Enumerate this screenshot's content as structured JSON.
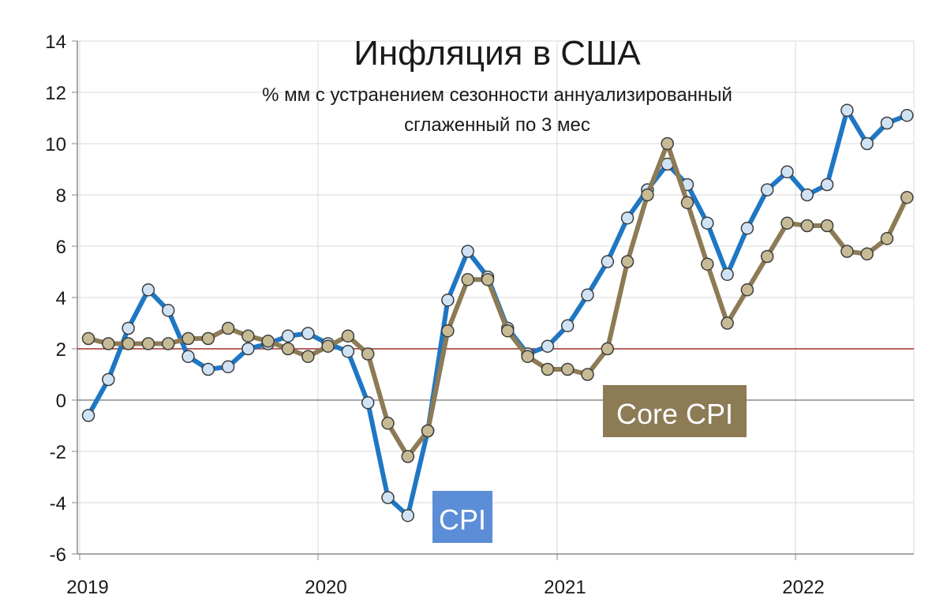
{
  "chart_data": {
    "type": "line",
    "title": "Инфляция в США",
    "subtitle_lines": [
      "% мм с устранением сезонности аннуализированный",
      "сглаженный по 3 мес"
    ],
    "xlabel": "",
    "ylabel": "",
    "ylim": [
      -6,
      14
    ],
    "y_ticks": [
      -6,
      -4,
      -2,
      0,
      2,
      4,
      6,
      8,
      10,
      12,
      14
    ],
    "x_ticks": [
      "2019",
      "2020",
      "2021",
      "2022"
    ],
    "grid": true,
    "reference_line": 2,
    "series": [
      {
        "name": "CPI",
        "color": "#1f77c4",
        "marker_fill": "#cfe3f5",
        "label_bg": "#5b8ed6",
        "values": [
          -0.6,
          0.8,
          2.8,
          4.3,
          3.5,
          1.7,
          1.2,
          1.3,
          2.0,
          2.2,
          2.5,
          2.6,
          2.2,
          1.9,
          -0.1,
          -3.8,
          -4.5,
          -1.2,
          3.9,
          5.8,
          4.8,
          2.8,
          1.8,
          2.1,
          2.9,
          4.1,
          5.4,
          7.1,
          8.2,
          9.2,
          8.4,
          6.9,
          4.9,
          6.7,
          8.2,
          8.9,
          8.0,
          8.4,
          11.3,
          10.0,
          10.8,
          11.1
        ]
      },
      {
        "name": "Core CPI",
        "color": "#8c7b55",
        "marker_fill": "#c7bb96",
        "label_bg": "#8c7b55",
        "values": [
          2.4,
          2.2,
          2.2,
          2.2,
          2.2,
          2.4,
          2.4,
          2.8,
          2.5,
          2.3,
          2.0,
          1.7,
          2.1,
          2.5,
          1.8,
          -0.9,
          -2.2,
          -1.2,
          2.7,
          4.7,
          4.7,
          2.7,
          1.7,
          1.2,
          1.2,
          1.0,
          2.0,
          5.4,
          8.0,
          10.0,
          7.7,
          5.3,
          3.0,
          4.3,
          5.6,
          6.9,
          6.8,
          6.8,
          5.8,
          5.7,
          6.3,
          7.9
        ]
      }
    ]
  }
}
